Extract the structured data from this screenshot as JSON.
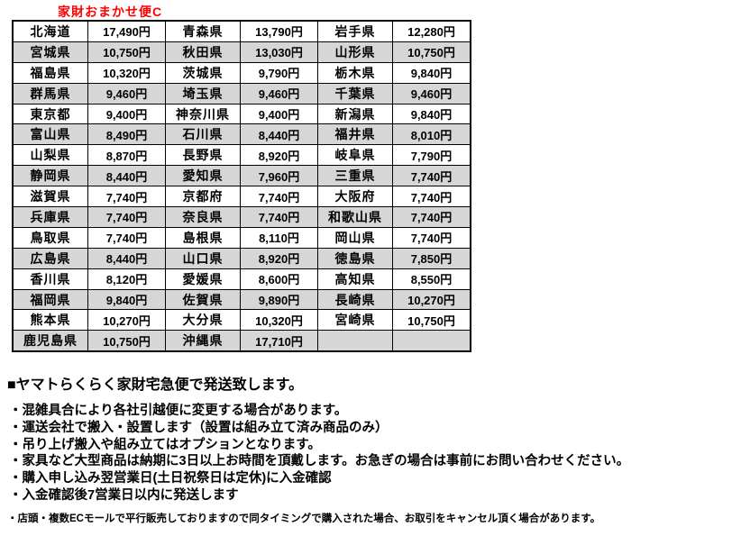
{
  "title": "家財おまかせ便C",
  "colors": {
    "accent_red": "#ff0000",
    "shaded_row": "#d6d6d6",
    "border": "#000000"
  },
  "table": {
    "rows": [
      {
        "shaded": false,
        "cells": [
          {
            "pref": "北海道",
            "price": "17,490円"
          },
          {
            "pref": "青森県",
            "price": "13,790円"
          },
          {
            "pref": "岩手県",
            "price": "12,280円"
          }
        ]
      },
      {
        "shaded": true,
        "cells": [
          {
            "pref": "宮城県",
            "price": "10,750円"
          },
          {
            "pref": "秋田県",
            "price": "13,030円"
          },
          {
            "pref": "山形県",
            "price": "10,750円"
          }
        ]
      },
      {
        "shaded": false,
        "cells": [
          {
            "pref": "福島県",
            "price": "10,320円"
          },
          {
            "pref": "茨城県",
            "price": "9,790円"
          },
          {
            "pref": "栃木県",
            "price": "9,840円"
          }
        ]
      },
      {
        "shaded": true,
        "cells": [
          {
            "pref": "群馬県",
            "price": "9,460円"
          },
          {
            "pref": "埼玉県",
            "price": "9,460円"
          },
          {
            "pref": "千葉県",
            "price": "9,460円"
          }
        ]
      },
      {
        "shaded": false,
        "cells": [
          {
            "pref": "東京都",
            "price": "9,400円"
          },
          {
            "pref": "神奈川県",
            "price": "9,400円"
          },
          {
            "pref": "新潟県",
            "price": "9,840円"
          }
        ]
      },
      {
        "shaded": true,
        "cells": [
          {
            "pref": "富山県",
            "price": "8,490円"
          },
          {
            "pref": "石川県",
            "price": "8,440円"
          },
          {
            "pref": "福井県",
            "price": "8,010円"
          }
        ]
      },
      {
        "shaded": false,
        "cells": [
          {
            "pref": "山梨県",
            "price": "8,870円"
          },
          {
            "pref": "長野県",
            "price": "8,920円"
          },
          {
            "pref": "岐阜県",
            "price": "7,790円"
          }
        ]
      },
      {
        "shaded": true,
        "cells": [
          {
            "pref": "静岡県",
            "price": "8,440円"
          },
          {
            "pref": "愛知県",
            "price": "7,960円"
          },
          {
            "pref": "三重県",
            "price": "7,740円"
          }
        ]
      },
      {
        "shaded": false,
        "cells": [
          {
            "pref": "滋賀県",
            "price": "7,740円"
          },
          {
            "pref": "京都府",
            "price": "7,740円"
          },
          {
            "pref": "大阪府",
            "price": "7,740円"
          }
        ]
      },
      {
        "shaded": true,
        "cells": [
          {
            "pref": "兵庫県",
            "price": "7,740円"
          },
          {
            "pref": "奈良県",
            "price": "7,740円"
          },
          {
            "pref": "和歌山県",
            "price": "7,740円"
          }
        ]
      },
      {
        "shaded": false,
        "cells": [
          {
            "pref": "鳥取県",
            "price": "7,740円"
          },
          {
            "pref": "島根県",
            "price": "8,110円"
          },
          {
            "pref": "岡山県",
            "price": "7,740円"
          }
        ]
      },
      {
        "shaded": true,
        "cells": [
          {
            "pref": "広島県",
            "price": "8,440円"
          },
          {
            "pref": "山口県",
            "price": "8,920円"
          },
          {
            "pref": "徳島県",
            "price": "7,850円"
          }
        ]
      },
      {
        "shaded": false,
        "cells": [
          {
            "pref": "香川県",
            "price": "8,120円"
          },
          {
            "pref": "愛媛県",
            "price": "8,600円"
          },
          {
            "pref": "高知県",
            "price": "8,550円"
          }
        ]
      },
      {
        "shaded": true,
        "cells": [
          {
            "pref": "福岡県",
            "price": "9,840円"
          },
          {
            "pref": "佐賀県",
            "price": "9,890円"
          },
          {
            "pref": "長崎県",
            "price": "10,270円"
          }
        ]
      },
      {
        "shaded": false,
        "cells": [
          {
            "pref": "熊本県",
            "price": "10,270円"
          },
          {
            "pref": "大分県",
            "price": "10,320円"
          },
          {
            "pref": "宮崎県",
            "price": "10,750円"
          }
        ]
      },
      {
        "shaded": true,
        "cells": [
          {
            "pref": "鹿児島県",
            "price": "10,750円"
          },
          {
            "pref": "沖縄県",
            "price": "17,710円"
          },
          {
            "pref": "",
            "price": ""
          }
        ]
      }
    ]
  },
  "notes": {
    "heading": "■ヤマトらくらく家財宅急便で発送致します。",
    "bullets": [
      "・混雑具合により各社引越便に変更する場合があります。",
      "・運送会社で搬入・設置します（設置は組み立て済み商品のみ）",
      "・吊り上げ搬入や組み立てはオプションとなります。",
      "・家具など大型商品は納期に3日以上お時間を頂戴します。お急ぎの場合は事前にお問い合わせください。",
      "・購入申し込み翌営業日(土日祝祭日は定休)に入金確認",
      "・入金確認後7営業日以内に発送します"
    ],
    "footnote": "・店頭・複数ECモールで平行販売しておりますので同タイミングで購入された場合、お取引をキャンセル頂く場合があります。"
  }
}
